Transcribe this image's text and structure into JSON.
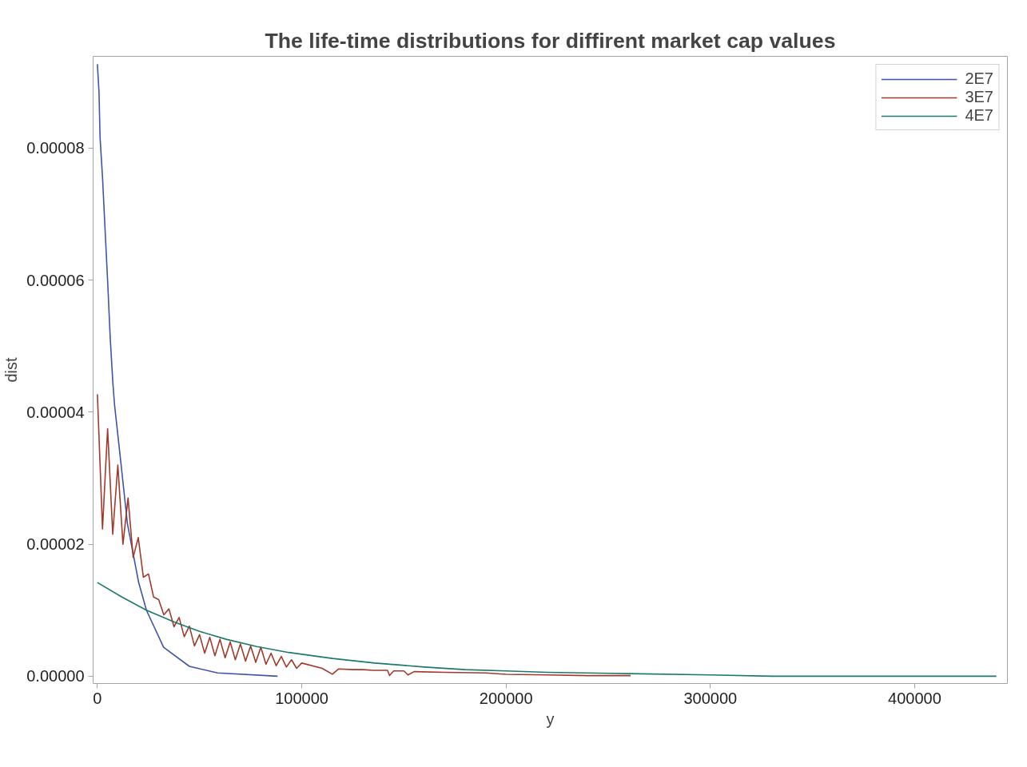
{
  "chart_data": {
    "type": "line",
    "title": "The life-time distributions for diffirent market cap values",
    "xlabel": "y",
    "ylabel": "dist",
    "xlim": [
      -2100,
      445400
    ],
    "ylim": [
      -1.1e-06,
      9.39e-05
    ],
    "xticks": [
      0,
      100000,
      200000,
      300000,
      400000
    ],
    "yticks": [
      {
        "value": 0,
        "label": "0.00000"
      },
      {
        "value": 2e-05,
        "label": "0.00002"
      },
      {
        "value": 4e-05,
        "label": "0.00004"
      },
      {
        "value": 6e-05,
        "label": "0.00006"
      },
      {
        "value": 8e-05,
        "label": "0.00008"
      }
    ],
    "grid": false,
    "legend": "top right",
    "marker": "none",
    "line_style": "solid",
    "series": [
      {
        "name": "2E7",
        "color": "#3f54a5",
        "x": [
          0,
          800,
          1300,
          2500,
          3400,
          5000,
          6300,
          7600,
          8400,
          11300,
          14700,
          20200,
          24000,
          32400,
          45000,
          58800,
          88200
        ],
        "values": [
          9.27e-05,
          8.84e-05,
          8.16e-05,
          7.56e-05,
          6.99e-05,
          5.99e-05,
          5.11e-05,
          4.43e-05,
          4.11e-05,
          3.29e-05,
          2.31e-05,
          1.42e-05,
          1e-05,
          4.4e-06,
          1.5e-06,
          5e-07,
          0.0
        ]
      },
      {
        "name": "3E7",
        "color": "#a23a2c",
        "x": [
          0,
          2500,
          5000,
          7500,
          10000,
          12500,
          15000,
          17500,
          20000,
          22500,
          25000,
          27500,
          30000,
          32500,
          35000,
          37500,
          40000,
          42500,
          45000,
          47500,
          50000,
          52500,
          55000,
          57500,
          60000,
          62500,
          65000,
          67500,
          70000,
          72500,
          75000,
          77500,
          80000,
          82500,
          85000,
          87500,
          90000,
          92500,
          95000,
          97500,
          100000,
          110000,
          115000,
          118000,
          125000,
          130000,
          135000,
          142000,
          143000,
          145000,
          150000,
          152000,
          155000,
          170000,
          190000,
          200000,
          220000,
          240000,
          261000
        ],
        "values": [
          4.27e-05,
          2.23e-05,
          3.75e-05,
          2.15e-05,
          3.2e-05,
          2e-05,
          2.7e-05,
          1.8e-05,
          2.1e-05,
          1.5e-05,
          1.55e-05,
          1.2e-05,
          1.16e-05,
          9.3e-06,
          1.02e-05,
          7.5e-06,
          8.9e-06,
          6e-06,
          7.6e-06,
          4.6e-06,
          6.3e-06,
          3.5e-06,
          5.9e-06,
          3.1e-06,
          5.6e-06,
          2.8e-06,
          5.2e-06,
          2.5e-06,
          4.9e-06,
          2.3e-06,
          4.6e-06,
          2.1e-06,
          4.4e-06,
          1.8e-06,
          3.5e-06,
          1.6e-06,
          3e-06,
          1.4e-06,
          2.5e-06,
          1.2e-06,
          2e-06,
          1.2e-06,
          3e-07,
          1.1e-06,
          1e-06,
          1e-06,
          9e-07,
          9e-07,
          1e-07,
          8e-07,
          8e-07,
          2e-07,
          7e-07,
          6e-07,
          5e-07,
          3e-07,
          2e-07,
          1e-07,
          1e-07
        ]
      },
      {
        "name": "4E7",
        "color": "#1b7a6a",
        "x": [
          0,
          12000,
          24000,
          37800,
          50000,
          63000,
          78000,
          93700,
          115000,
          135700,
          160000,
          180000,
          200000,
          220000,
          260000,
          300000,
          330000,
          440000
        ],
        "values": [
          1.42e-05,
          1.2e-05,
          1e-05,
          8.2e-06,
          6.8e-06,
          5.6e-06,
          4.5e-06,
          3.6e-06,
          2.7e-06,
          2e-06,
          1.4e-06,
          1e-06,
          8e-07,
          6e-07,
          4e-07,
          2e-07,
          0.0,
          0.0
        ]
      }
    ]
  }
}
